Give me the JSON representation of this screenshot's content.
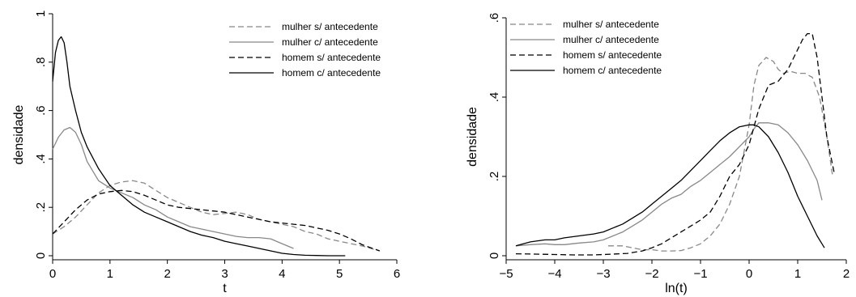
{
  "chart_data": [
    {
      "type": "line",
      "xlabel": "t",
      "ylabel": "densidade",
      "xlim": [
        0,
        6
      ],
      "ylim": [
        0,
        1
      ],
      "xticks": [
        "0",
        "1",
        "2",
        "3",
        "4",
        "5",
        "6"
      ],
      "yticks": [
        "0",
        ".2",
        ".4",
        ".6",
        ".8",
        "1"
      ],
      "grid": false,
      "legend_position": "top-right",
      "series": [
        {
          "name": "mulher s/ antecedente",
          "color": "#888888",
          "dash": "dashed",
          "x": [
            0,
            0.2,
            0.4,
            0.6,
            0.8,
            1.0,
            1.2,
            1.4,
            1.6,
            1.8,
            2.0,
            2.2,
            2.4,
            2.6,
            2.8,
            3.0,
            3.2,
            3.4,
            3.6,
            3.8,
            4.0,
            4.2,
            4.4,
            4.6,
            4.8,
            5.0,
            5.2,
            5.4,
            5.7
          ],
          "y": [
            0.09,
            0.12,
            0.16,
            0.21,
            0.26,
            0.29,
            0.305,
            0.31,
            0.3,
            0.27,
            0.24,
            0.22,
            0.2,
            0.18,
            0.17,
            0.175,
            0.18,
            0.17,
            0.15,
            0.14,
            0.13,
            0.12,
            0.1,
            0.09,
            0.07,
            0.06,
            0.05,
            0.04,
            0.02
          ]
        },
        {
          "name": "mulher c/ antecedente",
          "color": "#888888",
          "dash": "solid",
          "x": [
            0,
            0.1,
            0.2,
            0.3,
            0.4,
            0.5,
            0.6,
            0.7,
            0.8,
            1.0,
            1.2,
            1.4,
            1.6,
            1.8,
            2.0,
            2.2,
            2.4,
            2.6,
            2.8,
            3.0,
            3.2,
            3.4,
            3.6,
            3.8,
            4.0,
            4.2
          ],
          "y": [
            0.44,
            0.49,
            0.52,
            0.53,
            0.51,
            0.46,
            0.39,
            0.35,
            0.31,
            0.28,
            0.26,
            0.24,
            0.21,
            0.19,
            0.16,
            0.14,
            0.12,
            0.11,
            0.1,
            0.09,
            0.08,
            0.075,
            0.075,
            0.07,
            0.05,
            0.03
          ]
        },
        {
          "name": "homem s/ antecedente",
          "color": "#000000",
          "dash": "dashed",
          "x": [
            0,
            0.2,
            0.4,
            0.6,
            0.8,
            1.0,
            1.2,
            1.4,
            1.6,
            1.8,
            2.0,
            2.2,
            2.4,
            2.6,
            2.8,
            3.0,
            3.2,
            3.4,
            3.6,
            3.8,
            4.0,
            4.2,
            4.4,
            4.6,
            4.8,
            5.0,
            5.2,
            5.4,
            5.7
          ],
          "y": [
            0.09,
            0.14,
            0.19,
            0.23,
            0.255,
            0.265,
            0.27,
            0.265,
            0.25,
            0.23,
            0.21,
            0.2,
            0.195,
            0.19,
            0.185,
            0.18,
            0.17,
            0.16,
            0.15,
            0.14,
            0.135,
            0.13,
            0.125,
            0.115,
            0.105,
            0.09,
            0.07,
            0.045,
            0.02
          ]
        },
        {
          "name": "homem c/ antecedente",
          "color": "#000000",
          "dash": "solid",
          "x": [
            0,
            0.05,
            0.1,
            0.15,
            0.2,
            0.25,
            0.3,
            0.4,
            0.5,
            0.6,
            0.8,
            1.0,
            1.2,
            1.4,
            1.6,
            1.8,
            2.0,
            2.2,
            2.4,
            2.6,
            2.8,
            3.0,
            3.2,
            3.4,
            3.6,
            3.8,
            4.0,
            4.2,
            4.4,
            4.6,
            4.8,
            5.1
          ],
          "y": [
            0.72,
            0.84,
            0.89,
            0.905,
            0.88,
            0.8,
            0.7,
            0.6,
            0.51,
            0.45,
            0.36,
            0.29,
            0.25,
            0.21,
            0.18,
            0.16,
            0.14,
            0.12,
            0.1,
            0.085,
            0.075,
            0.06,
            0.05,
            0.04,
            0.03,
            0.02,
            0.01,
            0.005,
            0.002,
            0.001,
            0.0,
            0.0
          ]
        }
      ]
    },
    {
      "type": "line",
      "xlabel": "ln(t)",
      "ylabel": "densidade",
      "xlim": [
        -5,
        2
      ],
      "ylim": [
        0,
        0.6
      ],
      "xticks": [
        "−5",
        "−4",
        "−3",
        "−2",
        "−1",
        "0",
        "1",
        "2"
      ],
      "yticks": [
        "0",
        ".2",
        ".4",
        ".6"
      ],
      "grid": false,
      "legend_position": "top-left",
      "series": [
        {
          "name": "mulher s/ antecedente",
          "color": "#888888",
          "dash": "dashed",
          "x": [
            -2.9,
            -2.6,
            -2.4,
            -2.2,
            -2.0,
            -1.8,
            -1.6,
            -1.4,
            -1.2,
            -1.0,
            -0.8,
            -0.6,
            -0.4,
            -0.2,
            0.0,
            0.1,
            0.2,
            0.35,
            0.5,
            0.6,
            0.7,
            0.85,
            1.0,
            1.15,
            1.3,
            1.45,
            1.6,
            1.72
          ],
          "y": [
            0.025,
            0.025,
            0.02,
            0.015,
            0.015,
            0.012,
            0.012,
            0.013,
            0.02,
            0.03,
            0.05,
            0.08,
            0.13,
            0.2,
            0.33,
            0.43,
            0.48,
            0.5,
            0.49,
            0.47,
            0.46,
            0.465,
            0.46,
            0.46,
            0.45,
            0.4,
            0.3,
            0.2
          ]
        },
        {
          "name": "mulher c/ antecedente",
          "color": "#888888",
          "dash": "solid",
          "x": [
            -4.8,
            -4.5,
            -4.2,
            -4.0,
            -3.8,
            -3.5,
            -3.2,
            -3.0,
            -2.8,
            -2.6,
            -2.4,
            -2.2,
            -2.0,
            -1.8,
            -1.6,
            -1.4,
            -1.2,
            -1.0,
            -0.8,
            -0.6,
            -0.4,
            -0.2,
            0.0,
            0.1,
            0.2,
            0.4,
            0.6,
            0.8,
            1.0,
            1.2,
            1.4,
            1.5
          ],
          "y": [
            0.025,
            0.028,
            0.03,
            0.028,
            0.028,
            0.032,
            0.035,
            0.04,
            0.05,
            0.06,
            0.075,
            0.09,
            0.11,
            0.13,
            0.145,
            0.155,
            0.175,
            0.19,
            0.21,
            0.23,
            0.25,
            0.275,
            0.3,
            0.32,
            0.335,
            0.335,
            0.33,
            0.31,
            0.28,
            0.24,
            0.19,
            0.14
          ]
        },
        {
          "name": "homem s/ antecedente",
          "color": "#000000",
          "dash": "dashed",
          "x": [
            -4.8,
            -4.4,
            -4.0,
            -3.6,
            -3.2,
            -2.8,
            -2.5,
            -2.2,
            -2.0,
            -1.8,
            -1.6,
            -1.4,
            -1.2,
            -1.0,
            -0.8,
            -0.6,
            -0.4,
            -0.2,
            0.0,
            0.2,
            0.4,
            0.6,
            0.8,
            1.0,
            1.1,
            1.2,
            1.3,
            1.4,
            1.5,
            1.6,
            1.75
          ],
          "y": [
            0.005,
            0.004,
            0.003,
            0.002,
            0.002,
            0.004,
            0.006,
            0.012,
            0.02,
            0.03,
            0.045,
            0.06,
            0.075,
            0.09,
            0.11,
            0.15,
            0.2,
            0.23,
            0.28,
            0.37,
            0.43,
            0.44,
            0.47,
            0.52,
            0.545,
            0.56,
            0.56,
            0.5,
            0.4,
            0.3,
            0.21
          ]
        },
        {
          "name": "homem c/ antecedente",
          "color": "#000000",
          "dash": "solid",
          "x": [
            -4.8,
            -4.5,
            -4.2,
            -4.0,
            -3.8,
            -3.5,
            -3.2,
            -3.0,
            -2.8,
            -2.6,
            -2.4,
            -2.2,
            -2.0,
            -1.8,
            -1.6,
            -1.4,
            -1.2,
            -1.0,
            -0.8,
            -0.6,
            -0.4,
            -0.2,
            0.0,
            0.1,
            0.2,
            0.4,
            0.6,
            0.8,
            1.0,
            1.2,
            1.4,
            1.55
          ],
          "y": [
            0.025,
            0.035,
            0.04,
            0.04,
            0.045,
            0.05,
            0.055,
            0.06,
            0.07,
            0.08,
            0.095,
            0.11,
            0.13,
            0.15,
            0.17,
            0.19,
            0.215,
            0.24,
            0.265,
            0.29,
            0.31,
            0.325,
            0.33,
            0.33,
            0.325,
            0.3,
            0.26,
            0.21,
            0.15,
            0.1,
            0.05,
            0.02
          ]
        }
      ]
    }
  ]
}
